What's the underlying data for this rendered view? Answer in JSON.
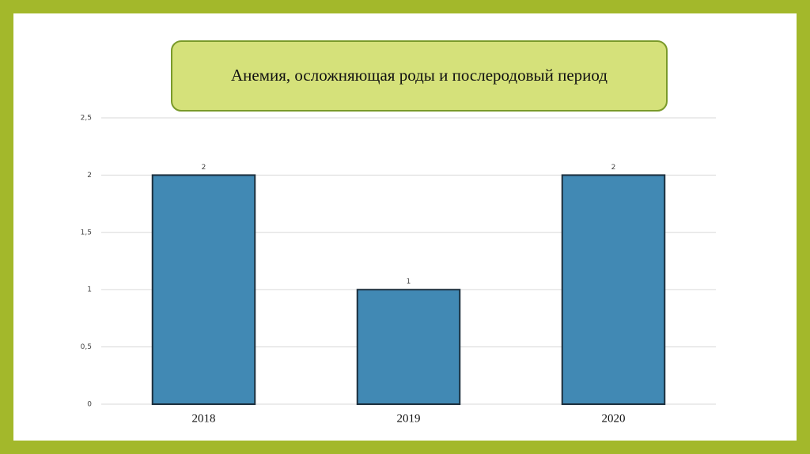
{
  "chart_data": {
    "type": "bar",
    "title": "Анемия, осложняющая роды и послеродовый период",
    "categories": [
      "2018",
      "2019",
      "2020"
    ],
    "values": [
      2,
      1,
      2
    ],
    "color": "#4189b4",
    "ylim": [
      0,
      2.5
    ],
    "yticks": [
      0,
      {
        "value": 0.5,
        "label": "0,5"
      },
      1,
      {
        "value": 1.5,
        "label": "1,5"
      },
      2,
      {
        "value": 2.5,
        "label": "2,5"
      }
    ],
    "grid": true
  }
}
